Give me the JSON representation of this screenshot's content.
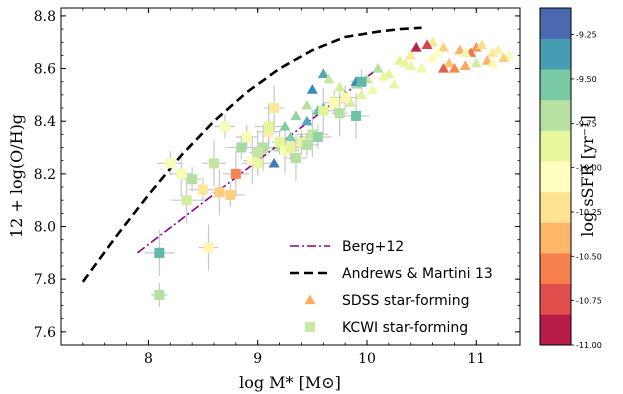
{
  "chart_data": {
    "type": "scatter",
    "xlabel": "log M* [M⊙]",
    "ylabel": "12 + log(O/H)g",
    "xlim": [
      7.2,
      11.4
    ],
    "ylim": [
      7.55,
      8.83
    ],
    "xticks": [
      8,
      9,
      10,
      11
    ],
    "xtick_labels": [
      "8",
      "9",
      "10",
      "11"
    ],
    "yticks": [
      7.6,
      7.8,
      8.0,
      8.2,
      8.4,
      8.6,
      8.8
    ],
    "ytick_labels": [
      "7.6",
      "7.8",
      "8.0",
      "8.2",
      "8.4",
      "8.6",
      "8.8"
    ],
    "colorbar": {
      "label": "log sSFR [yr⁻¹]",
      "range": [
        -11.0,
        -9.1
      ],
      "ticks": [
        -9.25,
        -9.5,
        -9.75,
        -10.0,
        -10.25,
        -10.5,
        -10.75,
        -11.0
      ],
      "tick_labels": [
        "-9.25",
        "-9.50",
        "-9.75",
        "-10.00",
        "-10.25",
        "-10.50",
        "-10.75",
        "-11.00"
      ],
      "colormap": "Spectral"
    },
    "legend": {
      "placement": "lower-right",
      "entries": [
        "Berg+12",
        "Andrews & Martini 13",
        "SDSS star-forming",
        "KCWI star-forming"
      ]
    },
    "lines": [
      {
        "name": "Berg+12",
        "style": "dash-dot",
        "color": "#8b008b",
        "x": [
          7.9,
          10.1
        ],
        "y": [
          7.9,
          8.6
        ]
      },
      {
        "name": "Andrews & Martini 13",
        "style": "dashed",
        "color": "#000000",
        "x": [
          7.4,
          7.7,
          8.0,
          8.3,
          8.6,
          8.9,
          9.2,
          9.5,
          9.8,
          10.1,
          10.3,
          10.5
        ],
        "y": [
          7.79,
          7.96,
          8.12,
          8.27,
          8.4,
          8.51,
          8.6,
          8.67,
          8.72,
          8.74,
          8.75,
          8.755
        ]
      }
    ],
    "series": [
      {
        "name": "SDSS star-forming",
        "marker": "triangle",
        "x": [
          10.55,
          10.7,
          10.85,
          11.0,
          11.15,
          11.3,
          10.6,
          10.95,
          11.1,
          10.4,
          10.75,
          11.2,
          10.5,
          10.9,
          11.05,
          10.3,
          10.65,
          10.8,
          11.25,
          10.45,
          10.2,
          10.35,
          10.0,
          10.1,
          9.9,
          9.8,
          9.6,
          9.5,
          9.7,
          9.45,
          9.35,
          9.25,
          9.65,
          9.55,
          9.4,
          9.3,
          9.2,
          9.75,
          10.15,
          10.25,
          9.95,
          9.85,
          10.05,
          10.6,
          10.9,
          11.15,
          10.7,
          9.15,
          9.45,
          9.6,
          9.9,
          10.55,
          11.0,
          10.4
        ],
        "y": [
          8.69,
          8.68,
          8.67,
          8.68,
          8.66,
          8.65,
          8.64,
          8.66,
          8.63,
          8.65,
          8.62,
          8.67,
          8.6,
          8.61,
          8.69,
          8.63,
          8.66,
          8.6,
          8.64,
          8.68,
          8.58,
          8.62,
          8.56,
          8.6,
          8.54,
          8.5,
          8.58,
          8.52,
          8.48,
          8.46,
          8.42,
          8.38,
          8.56,
          8.44,
          8.33,
          8.34,
          8.3,
          8.53,
          8.57,
          8.54,
          8.5,
          8.47,
          8.52,
          8.7,
          8.66,
          8.62,
          8.6,
          8.24,
          8.4,
          8.45,
          8.55,
          8.69,
          8.62,
          8.61
        ],
        "color_values": [
          -10.1,
          -10.3,
          -10.4,
          -10.5,
          -10.2,
          -10.0,
          -10.0,
          -10.6,
          -10.4,
          -10.2,
          -10.35,
          -10.15,
          -9.95,
          -10.45,
          -10.25,
          -9.85,
          -10.05,
          -10.55,
          -10.3,
          -10.9,
          -9.85,
          -9.9,
          -9.75,
          -9.7,
          -9.65,
          -9.5,
          -9.4,
          -9.3,
          -9.8,
          -9.7,
          -9.6,
          -9.55,
          -9.75,
          -9.5,
          -9.45,
          -9.55,
          -9.7,
          -9.8,
          -9.9,
          -9.9,
          -9.85,
          -9.8,
          -9.95,
          -10.2,
          -9.95,
          -10.1,
          -10.7,
          -9.25,
          -9.4,
          -9.4,
          -9.3,
          -10.8,
          -9.8,
          -9.9
        ]
      },
      {
        "name": "KCWI star-forming",
        "marker": "square",
        "x": [
          8.1,
          8.1,
          8.2,
          8.3,
          8.4,
          8.35,
          8.5,
          8.6,
          8.7,
          8.65,
          8.75,
          8.8,
          8.9,
          8.95,
          9.0,
          9.05,
          9.1,
          9.15,
          9.2,
          9.25,
          9.3,
          9.35,
          9.4,
          9.5,
          9.55,
          9.6,
          9.7,
          9.75,
          9.8,
          9.9,
          9.95,
          9.0,
          8.85,
          9.1,
          9.45,
          8.55
        ],
        "y": [
          7.74,
          7.9,
          8.24,
          8.2,
          8.18,
          8.1,
          8.14,
          8.24,
          8.38,
          8.13,
          8.12,
          8.2,
          8.34,
          8.25,
          8.24,
          8.3,
          8.36,
          8.45,
          8.32,
          8.29,
          8.3,
          8.26,
          8.32,
          8.35,
          8.34,
          8.44,
          8.47,
          8.43,
          8.49,
          8.42,
          8.55,
          8.28,
          8.3,
          8.38,
          8.31,
          7.92
        ],
        "color_values": [
          -9.7,
          -9.45,
          -10.0,
          -10.0,
          -9.7,
          -9.8,
          -10.2,
          -9.75,
          -10.0,
          -10.3,
          -10.3,
          -10.55,
          -10.0,
          -10.05,
          -9.9,
          -9.7,
          -10.15,
          -10.2,
          -9.85,
          -10.0,
          -9.85,
          -9.7,
          -9.9,
          -9.75,
          -9.6,
          -9.85,
          -10.0,
          -9.7,
          -10.1,
          -9.5,
          -9.45,
          -9.75,
          -9.65,
          -9.85,
          -9.7,
          -10.1
        ]
      }
    ]
  }
}
